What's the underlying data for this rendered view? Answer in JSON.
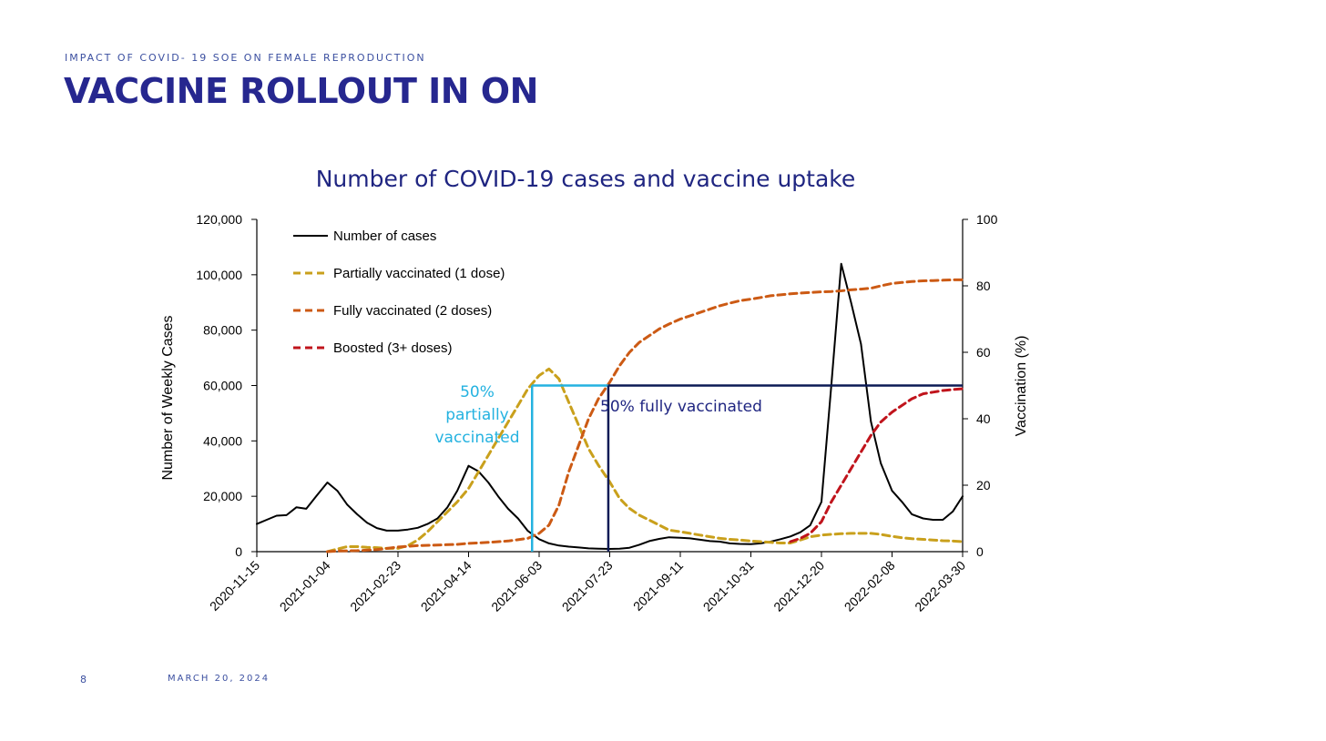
{
  "slide": {
    "eyebrow": "IMPACT OF COVID- 19 SOE ON FEMALE REPRODUCTION",
    "title": "VACCINE ROLLOUT IN ON",
    "page_number": "8",
    "date": "MARCH 20, 2024"
  },
  "colors": {
    "title": "#26278f",
    "cases": "#000000",
    "partial": "#c9a01c",
    "full": "#cc5a14",
    "boosted": "#c0141c",
    "annot_partial": "#24b2e0",
    "annot_full": "#0b1a55"
  },
  "chart_data": {
    "type": "line",
    "title": "Number of COVID-19 cases and vaccine uptake",
    "ylabel": "Number of Weekly Cases",
    "y2label": "Vaccination (%)",
    "xlim": [
      "2020-11-15",
      "2022-03-30"
    ],
    "ylim": [
      0,
      120000
    ],
    "y2lim": [
      0,
      100
    ],
    "x_ticks": [
      "2020-11-15",
      "2021-01-04",
      "2021-02-23",
      "2021-04-14",
      "2021-06-03",
      "2021-07-23",
      "2021-09-11",
      "2021-10-31",
      "2021-12-20",
      "2022-02-08",
      "2022-03-30"
    ],
    "y_tick_labels": [
      "0",
      "20,000",
      "40,000",
      "60,000",
      "80,000",
      "100,000",
      "120,000"
    ],
    "y2_tick_labels": [
      "0",
      "20",
      "40",
      "60",
      "80",
      "100"
    ],
    "legend_position": "top-left",
    "series": [
      {
        "name": "Number of cases",
        "axis": "left",
        "style": "solid",
        "color": "#000000",
        "points": [
          [
            "2020-11-15",
            10000
          ],
          [
            "2020-11-22",
            11500
          ],
          [
            "2020-11-29",
            13000
          ],
          [
            "2020-12-06",
            13200
          ],
          [
            "2020-12-13",
            16000
          ],
          [
            "2020-12-20",
            15500
          ],
          [
            "2020-12-27",
            20000
          ],
          [
            "2021-01-04",
            25000
          ],
          [
            "2021-01-11",
            22000
          ],
          [
            "2021-01-18",
            17000
          ],
          [
            "2021-01-25",
            13500
          ],
          [
            "2021-02-01",
            10500
          ],
          [
            "2021-02-08",
            8500
          ],
          [
            "2021-02-15",
            7600
          ],
          [
            "2021-02-23",
            7600
          ],
          [
            "2021-03-02",
            8000
          ],
          [
            "2021-03-09",
            8600
          ],
          [
            "2021-03-16",
            10000
          ],
          [
            "2021-03-23",
            12000
          ],
          [
            "2021-03-30",
            16000
          ],
          [
            "2021-04-06",
            22000
          ],
          [
            "2021-04-14",
            31000
          ],
          [
            "2021-04-21",
            29000
          ],
          [
            "2021-04-28",
            25000
          ],
          [
            "2021-05-05",
            20000
          ],
          [
            "2021-05-12",
            15500
          ],
          [
            "2021-05-19",
            12000
          ],
          [
            "2021-05-26",
            7500
          ],
          [
            "2021-06-03",
            4500
          ],
          [
            "2021-06-10",
            3000
          ],
          [
            "2021-06-17",
            2200
          ],
          [
            "2021-06-24",
            1800
          ],
          [
            "2021-07-01",
            1500
          ],
          [
            "2021-07-08",
            1200
          ],
          [
            "2021-07-15",
            1100
          ],
          [
            "2021-07-23",
            1000
          ],
          [
            "2021-07-30",
            1100
          ],
          [
            "2021-08-06",
            1400
          ],
          [
            "2021-08-13",
            2500
          ],
          [
            "2021-08-20",
            3800
          ],
          [
            "2021-08-27",
            4600
          ],
          [
            "2021-09-03",
            5200
          ],
          [
            "2021-09-11",
            5000
          ],
          [
            "2021-09-18",
            4800
          ],
          [
            "2021-09-25",
            4300
          ],
          [
            "2021-10-02",
            3800
          ],
          [
            "2021-10-09",
            3600
          ],
          [
            "2021-10-16",
            3000
          ],
          [
            "2021-10-23",
            2800
          ],
          [
            "2021-10-31",
            2700
          ],
          [
            "2021-11-07",
            3000
          ],
          [
            "2021-11-14",
            3600
          ],
          [
            "2021-11-21",
            4500
          ],
          [
            "2021-11-28",
            5500
          ],
          [
            "2021-12-05",
            7000
          ],
          [
            "2021-12-12",
            9500
          ],
          [
            "2021-12-20",
            18000
          ],
          [
            "2021-12-27",
            60000
          ],
          [
            "2022-01-03",
            104000
          ],
          [
            "2022-01-10",
            90000
          ],
          [
            "2022-01-17",
            75000
          ],
          [
            "2022-01-24",
            47000
          ],
          [
            "2022-01-31",
            32000
          ],
          [
            "2022-02-08",
            22000
          ],
          [
            "2022-02-15",
            18000
          ],
          [
            "2022-02-22",
            13500
          ],
          [
            "2022-03-02",
            12000
          ],
          [
            "2022-03-09",
            11500
          ],
          [
            "2022-03-16",
            11500
          ],
          [
            "2022-03-23",
            14500
          ],
          [
            "2022-03-30",
            20000
          ]
        ]
      },
      {
        "name": "Partially vaccinated (1 dose)",
        "axis": "right",
        "style": "dashed",
        "color": "#c9a01c",
        "points": [
          [
            "2021-01-04",
            0
          ],
          [
            "2021-01-11",
            0.8
          ],
          [
            "2021-01-18",
            1.5
          ],
          [
            "2021-01-25",
            1.5
          ],
          [
            "2021-02-01",
            1.3
          ],
          [
            "2021-02-08",
            1.2
          ],
          [
            "2021-02-15",
            1
          ],
          [
            "2021-02-23",
            1
          ],
          [
            "2021-03-02",
            1.8
          ],
          [
            "2021-03-09",
            3.5
          ],
          [
            "2021-03-16",
            6
          ],
          [
            "2021-03-23",
            9
          ],
          [
            "2021-03-30",
            12
          ],
          [
            "2021-04-06",
            15
          ],
          [
            "2021-04-14",
            19
          ],
          [
            "2021-04-21",
            24
          ],
          [
            "2021-04-28",
            29
          ],
          [
            "2021-05-05",
            34
          ],
          [
            "2021-05-12",
            39
          ],
          [
            "2021-05-19",
            44
          ],
          [
            "2021-05-26",
            49
          ],
          [
            "2021-06-03",
            53
          ],
          [
            "2021-06-10",
            55
          ],
          [
            "2021-06-17",
            52
          ],
          [
            "2021-06-24",
            45
          ],
          [
            "2021-07-01",
            38
          ],
          [
            "2021-07-08",
            31
          ],
          [
            "2021-07-15",
            26
          ],
          [
            "2021-07-23",
            21
          ],
          [
            "2021-07-30",
            16
          ],
          [
            "2021-08-06",
            13
          ],
          [
            "2021-08-13",
            11
          ],
          [
            "2021-08-20",
            9.5
          ],
          [
            "2021-08-27",
            8
          ],
          [
            "2021-09-03",
            6.5
          ],
          [
            "2021-09-11",
            6
          ],
          [
            "2021-09-18",
            5.5
          ],
          [
            "2021-09-25",
            5
          ],
          [
            "2021-10-02",
            4.5
          ],
          [
            "2021-10-09",
            4
          ],
          [
            "2021-10-16",
            3.7
          ],
          [
            "2021-10-23",
            3.5
          ],
          [
            "2021-10-31",
            3.2
          ],
          [
            "2021-11-07",
            3
          ],
          [
            "2021-11-14",
            2.8
          ],
          [
            "2021-11-21",
            2.6
          ],
          [
            "2021-11-28",
            2.6
          ],
          [
            "2021-12-05",
            3.5
          ],
          [
            "2021-12-12",
            4.5
          ],
          [
            "2021-12-20",
            5
          ],
          [
            "2021-12-27",
            5.2
          ],
          [
            "2022-01-03",
            5.4
          ],
          [
            "2022-01-10",
            5.5
          ],
          [
            "2022-01-17",
            5.5
          ],
          [
            "2022-01-24",
            5.5
          ],
          [
            "2022-01-31",
            5.2
          ],
          [
            "2022-02-08",
            4.6
          ],
          [
            "2022-02-15",
            4.2
          ],
          [
            "2022-02-22",
            3.9
          ],
          [
            "2022-03-02",
            3.7
          ],
          [
            "2022-03-09",
            3.5
          ],
          [
            "2022-03-16",
            3.3
          ],
          [
            "2022-03-23",
            3.2
          ],
          [
            "2022-03-30",
            3
          ]
        ]
      },
      {
        "name": "Fully vaccinated (2 doses)",
        "axis": "right",
        "style": "dashed",
        "color": "#cc5a14",
        "points": [
          [
            "2021-01-04",
            0
          ],
          [
            "2021-01-11",
            0.2
          ],
          [
            "2021-01-25",
            0.3
          ],
          [
            "2021-02-08",
            0.6
          ],
          [
            "2021-02-23",
            1.4
          ],
          [
            "2021-03-09",
            1.8
          ],
          [
            "2021-03-23",
            2
          ],
          [
            "2021-04-06",
            2.2
          ],
          [
            "2021-04-14",
            2.5
          ],
          [
            "2021-04-28",
            2.8
          ],
          [
            "2021-05-12",
            3.2
          ],
          [
            "2021-05-26",
            4
          ],
          [
            "2021-06-03",
            5.5
          ],
          [
            "2021-06-10",
            8
          ],
          [
            "2021-06-17",
            14
          ],
          [
            "2021-06-24",
            24
          ],
          [
            "2021-07-01",
            32
          ],
          [
            "2021-07-08",
            40
          ],
          [
            "2021-07-15",
            46
          ],
          [
            "2021-07-23",
            51
          ],
          [
            "2021-07-30",
            56
          ],
          [
            "2021-08-06",
            60
          ],
          [
            "2021-08-13",
            63
          ],
          [
            "2021-08-20",
            65
          ],
          [
            "2021-08-27",
            67
          ],
          [
            "2021-09-03",
            68.5
          ],
          [
            "2021-09-11",
            70
          ],
          [
            "2021-09-18",
            71
          ],
          [
            "2021-09-25",
            72
          ],
          [
            "2021-10-02",
            73
          ],
          [
            "2021-10-09",
            74
          ],
          [
            "2021-10-16",
            74.8
          ],
          [
            "2021-10-23",
            75.5
          ],
          [
            "2021-10-31",
            76
          ],
          [
            "2021-11-07",
            76.5
          ],
          [
            "2021-11-14",
            77
          ],
          [
            "2021-11-21",
            77.3
          ],
          [
            "2021-11-28",
            77.6
          ],
          [
            "2021-12-05",
            77.8
          ],
          [
            "2021-12-12",
            78
          ],
          [
            "2021-12-20",
            78.2
          ],
          [
            "2021-12-27",
            78.3
          ],
          [
            "2022-01-03",
            78.5
          ],
          [
            "2022-01-10",
            78.8
          ],
          [
            "2022-01-17",
            79
          ],
          [
            "2022-01-24",
            79.3
          ],
          [
            "2022-01-31",
            80
          ],
          [
            "2022-02-08",
            80.7
          ],
          [
            "2022-02-15",
            81
          ],
          [
            "2022-02-22",
            81.3
          ],
          [
            "2022-03-02",
            81.5
          ],
          [
            "2022-03-09",
            81.6
          ],
          [
            "2022-03-16",
            81.7
          ],
          [
            "2022-03-23",
            81.8
          ],
          [
            "2022-03-30",
            81.8
          ]
        ]
      },
      {
        "name": "Boosted (3+ doses)",
        "axis": "right",
        "style": "dashed",
        "color": "#c0141c",
        "points": [
          [
            "2021-11-28",
            3
          ],
          [
            "2021-12-05",
            4
          ],
          [
            "2021-12-12",
            5.5
          ],
          [
            "2021-12-20",
            9
          ],
          [
            "2021-12-27",
            15
          ],
          [
            "2022-01-03",
            20
          ],
          [
            "2022-01-10",
            25
          ],
          [
            "2022-01-17",
            30
          ],
          [
            "2022-01-24",
            35
          ],
          [
            "2022-01-31",
            39
          ],
          [
            "2022-02-08",
            42
          ],
          [
            "2022-02-15",
            44
          ],
          [
            "2022-02-22",
            46
          ],
          [
            "2022-03-02",
            47.5
          ],
          [
            "2022-03-09",
            48
          ],
          [
            "2022-03-16",
            48.5
          ],
          [
            "2022-03-23",
            48.8
          ],
          [
            "2022-03-30",
            49
          ]
        ]
      }
    ],
    "annotations": [
      {
        "id": "partial",
        "text_lines": [
          "50%",
          "partially",
          "vaccinated"
        ],
        "x": "2021-05-29",
        "y_pct": 50
      },
      {
        "id": "full",
        "text_lines": [
          "50% fully vaccinated"
        ],
        "x": "2021-07-22",
        "y_pct": 50
      }
    ]
  }
}
